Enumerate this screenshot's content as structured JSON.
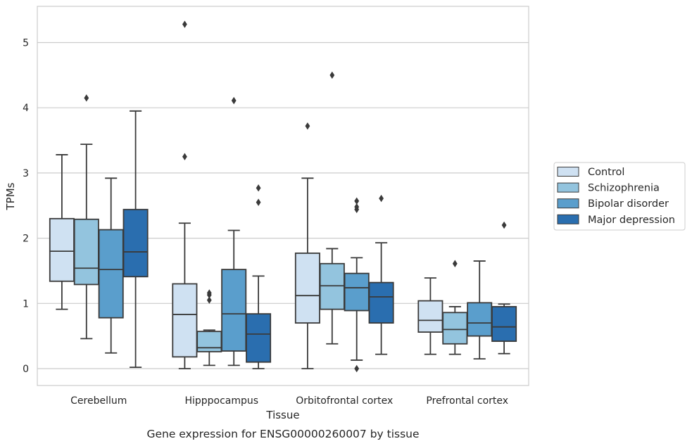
{
  "caption": "Gene expression for ENSG00000260007 by tissue",
  "chart_data": {
    "type": "boxplot",
    "xlabel": "Tissue",
    "ylabel": "TPMs",
    "ylim": [
      -0.25,
      5.55
    ],
    "yticks": [
      0,
      1,
      2,
      3,
      4,
      5
    ],
    "grid": "horizontal",
    "legend_position": "right",
    "categories": [
      "Cerebellum",
      "Hipppocampus",
      "Orbitofrontal cortex",
      "Prefrontal cortex"
    ],
    "series": [
      {
        "name": "Control",
        "color": "#cfe1f2",
        "boxes": [
          {
            "whislo": 0.91,
            "q1": 1.34,
            "med": 1.8,
            "q3": 2.3,
            "whishi": 3.28,
            "fliers": []
          },
          {
            "whislo": 0.0,
            "q1": 0.18,
            "med": 0.83,
            "q3": 1.3,
            "whishi": 2.23,
            "fliers": [
              3.25,
              5.28
            ]
          },
          {
            "whislo": 0.0,
            "q1": 0.7,
            "med": 1.12,
            "q3": 1.77,
            "whishi": 2.92,
            "fliers": [
              3.72
            ]
          },
          {
            "whislo": 0.22,
            "q1": 0.56,
            "med": 0.74,
            "q3": 1.04,
            "whishi": 1.39,
            "fliers": []
          }
        ]
      },
      {
        "name": "Schizophrenia",
        "color": "#93c4de",
        "boxes": [
          {
            "whislo": 0.46,
            "q1": 1.29,
            "med": 1.54,
            "q3": 2.29,
            "whishi": 3.44,
            "fliers": [
              4.15
            ]
          },
          {
            "whislo": 0.05,
            "q1": 0.26,
            "med": 0.32,
            "q3": 0.57,
            "whishi": 0.59,
            "fliers": [
              1.05,
              1.13,
              1.16
            ]
          },
          {
            "whislo": 0.38,
            "q1": 0.91,
            "med": 1.27,
            "q3": 1.61,
            "whishi": 1.84,
            "fliers": [
              4.5
            ]
          },
          {
            "whislo": 0.22,
            "q1": 0.38,
            "med": 0.6,
            "q3": 0.86,
            "whishi": 0.95,
            "fliers": [
              1.61
            ]
          }
        ]
      },
      {
        "name": "Bipolar disorder",
        "color": "#5a9ecc",
        "boxes": [
          {
            "whislo": 0.24,
            "q1": 0.78,
            "med": 1.52,
            "q3": 2.13,
            "whishi": 2.92,
            "fliers": []
          },
          {
            "whislo": 0.05,
            "q1": 0.27,
            "med": 0.84,
            "q3": 1.52,
            "whishi": 2.12,
            "fliers": [
              4.11
            ]
          },
          {
            "whislo": 0.13,
            "q1": 0.89,
            "med": 1.24,
            "q3": 1.46,
            "whishi": 1.7,
            "fliers": [
              0.0,
              2.44,
              2.48,
              2.57
            ]
          },
          {
            "whislo": 0.15,
            "q1": 0.5,
            "med": 0.7,
            "q3": 1.01,
            "whishi": 1.65,
            "fliers": []
          }
        ]
      },
      {
        "name": "Major depression",
        "color": "#2a6eaf",
        "boxes": [
          {
            "whislo": 0.02,
            "q1": 1.41,
            "med": 1.79,
            "q3": 2.44,
            "whishi": 3.95,
            "fliers": []
          },
          {
            "whislo": 0.0,
            "q1": 0.1,
            "med": 0.53,
            "q3": 0.84,
            "whishi": 1.42,
            "fliers": [
              2.55,
              2.77
            ]
          },
          {
            "whislo": 0.22,
            "q1": 0.7,
            "med": 1.1,
            "q3": 1.32,
            "whishi": 1.93,
            "fliers": [
              2.61
            ]
          },
          {
            "whislo": 0.23,
            "q1": 0.42,
            "med": 0.64,
            "q3": 0.95,
            "whishi": 0.99,
            "fliers": [
              2.2
            ]
          }
        ]
      }
    ]
  }
}
